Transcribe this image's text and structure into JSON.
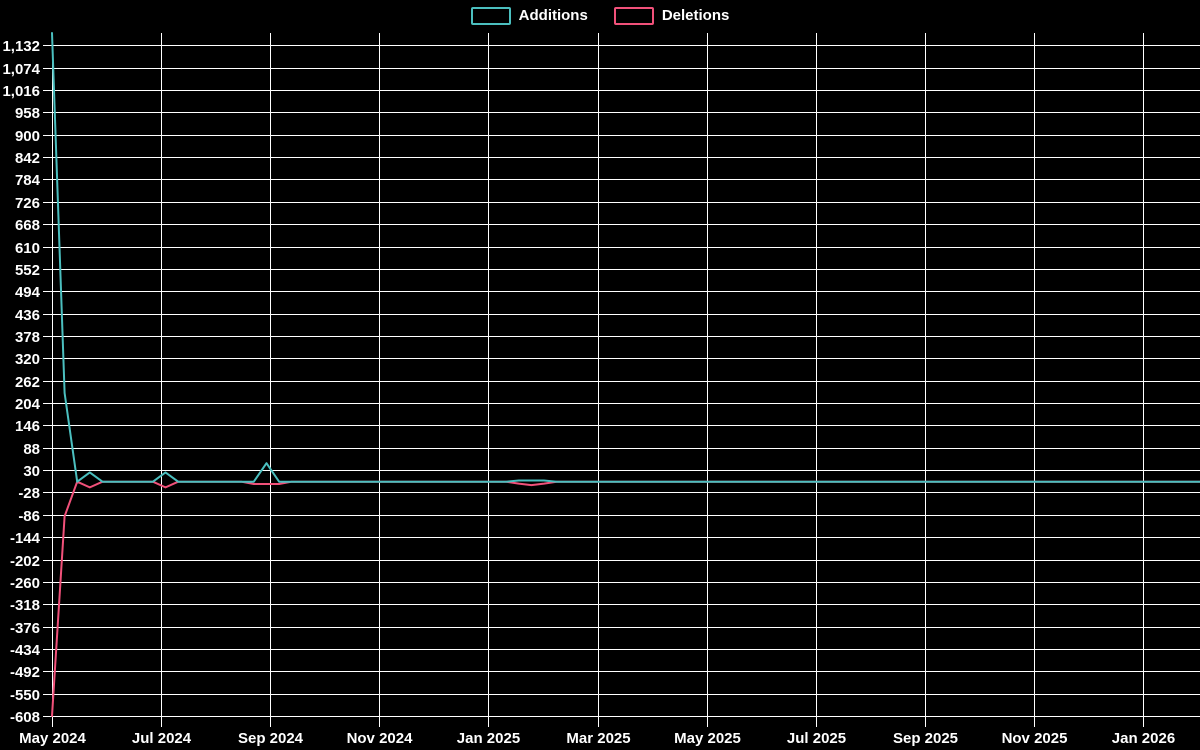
{
  "page": {
    "background_color": "#000000",
    "grid_color": "#ffffff",
    "text_color": "#ffffff"
  },
  "legend": {
    "position": "top-center",
    "items": [
      {
        "label": "Additions",
        "color": "#4bbfbf"
      },
      {
        "label": "Deletions",
        "color": "#f1517a"
      }
    ]
  },
  "chart_data": {
    "type": "line",
    "title": "",
    "xlabel": "",
    "ylabel": "",
    "x_unit": "week",
    "x_range_label": "May 2024 - Jan 2026",
    "x_tick_labels": [
      "May 2024",
      "Jul 2024",
      "Sep 2024",
      "Nov 2024",
      "Jan 2025",
      "Mar 2025",
      "May 2025",
      "Jul 2025",
      "Sep 2025",
      "Nov 2025",
      "Jan 2026"
    ],
    "y_axis": {
      "tick_min": -608,
      "tick_step": 58,
      "tick_max": 1132,
      "axis_min": -608,
      "axis_max": 1164,
      "grid": true
    },
    "y_tick_labels": [
      "-608",
      "-550",
      "-492",
      "-434",
      "-376",
      "-318",
      "-260",
      "-202",
      "-144",
      "-86",
      "-28",
      "30",
      "88",
      "146",
      "204",
      "262",
      "320",
      "378",
      "436",
      "494",
      "552",
      "610",
      "668",
      "726",
      "784",
      "842",
      "900",
      "958",
      "1,016",
      "1,074",
      "1,132"
    ],
    "legend_position": "top-center",
    "series": [
      {
        "name": "Additions",
        "color": "#4bbfbf",
        "values": [
          1164,
          230,
          0,
          24,
          0,
          0,
          0,
          0,
          0,
          24,
          0,
          0,
          0,
          0,
          0,
          0,
          0,
          48,
          0,
          0,
          0,
          0,
          0,
          0,
          0,
          0,
          0,
          0,
          0,
          0,
          0,
          0,
          0,
          0,
          0,
          0,
          0,
          3,
          3,
          3,
          0,
          0,
          0,
          0,
          0,
          0,
          0,
          0,
          0,
          0,
          0,
          0,
          0,
          0,
          0,
          0,
          0,
          0,
          0,
          0,
          0,
          0,
          0,
          0,
          0,
          0,
          0,
          0,
          0,
          0,
          0,
          0,
          0,
          0,
          0,
          0,
          0,
          0,
          0,
          0,
          0,
          0,
          0,
          0,
          0,
          0,
          0,
          0,
          0,
          0,
          0,
          0
        ]
      },
      {
        "name": "Deletions",
        "color": "#f1517a",
        "values": [
          -608,
          -90,
          0,
          -15,
          0,
          0,
          0,
          0,
          0,
          -15,
          0,
          0,
          0,
          0,
          0,
          0,
          -6,
          -6,
          -6,
          0,
          0,
          0,
          0,
          0,
          0,
          0,
          0,
          0,
          0,
          0,
          0,
          0,
          0,
          0,
          0,
          0,
          0,
          -5,
          -9,
          -5,
          0,
          0,
          0,
          0,
          0,
          0,
          0,
          0,
          0,
          0,
          0,
          0,
          0,
          0,
          0,
          0,
          0,
          0,
          0,
          0,
          0,
          0,
          0,
          0,
          0,
          0,
          0,
          0,
          0,
          0,
          0,
          0,
          0,
          0,
          0,
          0,
          0,
          0,
          0,
          0,
          0,
          0,
          0,
          0,
          0,
          0,
          0,
          0,
          0,
          0,
          0,
          0
        ]
      }
    ]
  }
}
